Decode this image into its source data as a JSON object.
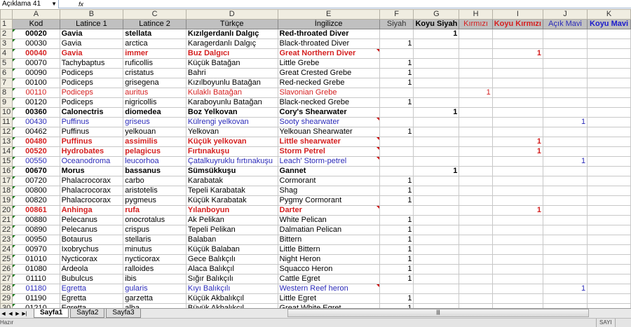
{
  "formula_bar": {
    "name_box": "Açıklama 41",
    "fx": "fx"
  },
  "columns": [
    "A",
    "B",
    "C",
    "D",
    "E",
    "F",
    "G",
    "H",
    "I",
    "J",
    "K"
  ],
  "header": {
    "row": "1",
    "cells": [
      "Kod",
      "Latince 1",
      "Latince 2",
      "Türkçe",
      "İngilizce",
      "Siyah",
      "Koyu Siyah",
      "Kırmızı",
      "Koyu Kırmızı",
      "Açık Mavi",
      "Koyu Mavi"
    ]
  },
  "colors": {
    "red": "#d42020",
    "blue": "#2a2ab8",
    "dark_blue": "#1a1acc",
    "header_gray": "#c0c0c0"
  },
  "rows": [
    {
      "n": "2",
      "style": "bold",
      "cells": [
        "00020",
        "Gavia",
        "stellata",
        "Kızılgerdanlı Dalgıç",
        "Red-throated Diver"
      ],
      "col": "G",
      "value": "1"
    },
    {
      "n": "3",
      "style": "normal",
      "cells": [
        "00030",
        "Gavia",
        "arctica",
        "Karagerdanlı Dalgıç",
        "Black-throated Diver"
      ],
      "col": "F",
      "value": "1"
    },
    {
      "n": "4",
      "style": "red-bold",
      "cells": [
        "00040",
        "Gavia",
        "immer",
        "Buz Dalgıcı",
        "Great Northern Diver"
      ],
      "col": "I",
      "value": "1",
      "comment": true
    },
    {
      "n": "5",
      "style": "normal",
      "cells": [
        "00070",
        "Tachybaptus",
        "ruficollis",
        "Küçük Batağan",
        "Little Grebe"
      ],
      "col": "F",
      "value": "1"
    },
    {
      "n": "6",
      "style": "normal",
      "cells": [
        "00090",
        "Podiceps",
        "cristatus",
        "Bahri",
        "Great Crested Grebe"
      ],
      "col": "F",
      "value": "1"
    },
    {
      "n": "7",
      "style": "normal",
      "cells": [
        "00100",
        "Podiceps",
        "grisegena",
        "Kızılboyunlu Batağan",
        "Red-necked Grebe"
      ],
      "col": "F",
      "value": "1"
    },
    {
      "n": "8",
      "style": "red",
      "cells": [
        "00110",
        "Podiceps",
        "auritus",
        "Kulaklı Batağan",
        "Slavonian Grebe"
      ],
      "col": "H",
      "value": "1"
    },
    {
      "n": "9",
      "style": "normal",
      "cells": [
        "00120",
        "Podiceps",
        "nigricollis",
        "Karaboyunlu Batağan",
        "Black-necked Grebe"
      ],
      "col": "F",
      "value": "1"
    },
    {
      "n": "10",
      "style": "bold",
      "cells": [
        "00360",
        "Calonectris",
        "diomedea",
        "Boz Yelkovan",
        "Cory's Shearwater"
      ],
      "col": "G",
      "value": "1"
    },
    {
      "n": "11",
      "style": "blue",
      "cells": [
        "00430",
        "Puffinus",
        "griseus",
        "Külrengi yelkovan",
        "Sooty shearwater"
      ],
      "col": "J",
      "value": "1",
      "comment": true
    },
    {
      "n": "12",
      "style": "normal",
      "cells": [
        "00462",
        "Puffinus",
        "yelkouan",
        "Yelkovan",
        "Yelkouan Shearwater"
      ],
      "col": "F",
      "value": "1"
    },
    {
      "n": "13",
      "style": "red-bold",
      "cells": [
        "00480",
        "Puffinus",
        "assimilis",
        "Küçük yelkovan",
        "Little shearwater"
      ],
      "col": "I",
      "value": "1",
      "comment": true
    },
    {
      "n": "14",
      "style": "red-bold",
      "cells": [
        "00520",
        "Hydrobates",
        "pelagicus",
        "Fırtınakuşu",
        "Storm Petrel"
      ],
      "col": "I",
      "value": "1",
      "comment": true
    },
    {
      "n": "15",
      "style": "blue",
      "cells": [
        "00550",
        "Oceanodroma",
        "leucorhoa",
        "Çatalkuyruklu fırtınakuşu",
        "Leach' Storm-petrel"
      ],
      "col": "J",
      "value": "1",
      "comment": true
    },
    {
      "n": "16",
      "style": "bold",
      "cells": [
        "00670",
        "Morus",
        "bassanus",
        "Sümsükkuşu",
        "Gannet"
      ],
      "col": "G",
      "value": "1"
    },
    {
      "n": "17",
      "style": "normal",
      "cells": [
        "00720",
        "Phalacrocorax",
        "carbo",
        "Karabatak",
        "Cormorant"
      ],
      "col": "F",
      "value": "1"
    },
    {
      "n": "18",
      "style": "normal",
      "cells": [
        "00800",
        "Phalacrocorax",
        "aristotelis",
        "Tepeli Karabatak",
        "Shag"
      ],
      "col": "F",
      "value": "1"
    },
    {
      "n": "19",
      "style": "normal",
      "cells": [
        "00820",
        "Phalacrocorax",
        "pygmeus",
        "Küçük Karabatak",
        "Pygmy Cormorant"
      ],
      "col": "F",
      "value": "1"
    },
    {
      "n": "20",
      "style": "red-bold",
      "cells": [
        "00861",
        "Anhinga",
        "rufa",
        "Yılanboyun",
        "Darter"
      ],
      "col": "I",
      "value": "1",
      "comment": true
    },
    {
      "n": "21",
      "style": "normal",
      "cells": [
        "00880",
        "Pelecanus",
        "onocrotalus",
        "Ak Pelikan",
        " White Pelican"
      ],
      "col": "F",
      "value": "1"
    },
    {
      "n": "22",
      "style": "normal",
      "cells": [
        "00890",
        "Pelecanus",
        "crispus",
        "Tepeli Pelikan",
        "Dalmatian Pelican"
      ],
      "col": "F",
      "value": "1"
    },
    {
      "n": "23",
      "style": "normal",
      "cells": [
        "00950",
        "Botaurus",
        "stellaris",
        "Balaban",
        "Bittern"
      ],
      "col": "F",
      "value": "1"
    },
    {
      "n": "24",
      "style": "normal",
      "cells": [
        "00970",
        "Ixobrychus",
        "minutus",
        "Küçük Balaban",
        "Little Bittern"
      ],
      "col": "F",
      "value": "1"
    },
    {
      "n": "25",
      "style": "normal",
      "cells": [
        "01010",
        "Nycticorax",
        "nycticorax",
        "Gece Balıkçılı",
        "Night Heron"
      ],
      "col": "F",
      "value": "1"
    },
    {
      "n": "26",
      "style": "normal",
      "cells": [
        "01080",
        "Ardeola",
        "ralloides",
        "Alaca Balıkçıl",
        "Squacco Heron"
      ],
      "col": "F",
      "value": "1"
    },
    {
      "n": "27",
      "style": "normal",
      "cells": [
        "01110",
        "Bubulcus",
        "ibis",
        "Sığır Balıkçılı",
        "Cattle Egret"
      ],
      "col": "F",
      "value": "1"
    },
    {
      "n": "28",
      "style": "blue",
      "cells": [
        "01180",
        "Egretta",
        "gularis",
        "Kıyı Balıkçılı",
        "Western Reef heron"
      ],
      "col": "J",
      "value": "1",
      "comment": true
    },
    {
      "n": "29",
      "style": "normal",
      "cells": [
        "01190",
        "Egretta",
        "garzetta",
        "Küçük Akbalıkçıl",
        "Little Egret"
      ],
      "col": "F",
      "value": "1"
    },
    {
      "n": "30",
      "style": "normal",
      "cells": [
        "01210",
        "Egretta",
        "alba",
        "Büyük Akbalıkçıl",
        "Great White Egret"
      ],
      "col": "F",
      "value": "1"
    }
  ],
  "sheets": [
    "Sayfa1",
    "Sayfa2",
    "Sayfa3"
  ],
  "active_sheet": "Sayfa1",
  "status": {
    "left": "Hazır",
    "mode": "SAYI"
  }
}
